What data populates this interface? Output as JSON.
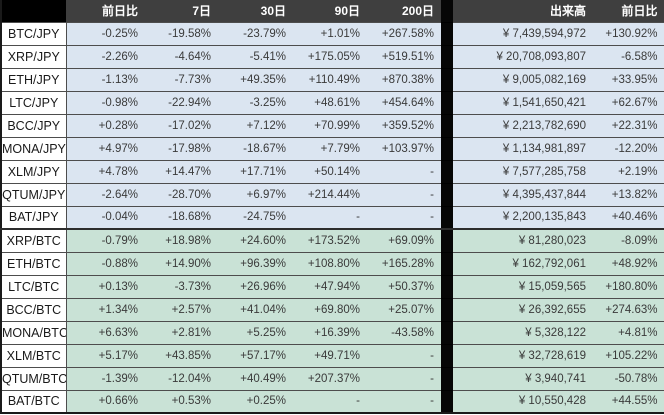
{
  "table": {
    "headers": {
      "pair": "",
      "change_1d": "前日比",
      "d7": "7日",
      "d30": "30日",
      "d90": "90日",
      "d200": "200日",
      "volume": "出来高",
      "vol_change_1d": "前日比"
    },
    "rows": [
      {
        "group": "jpy",
        "pair": "BTC/JPY",
        "change_1d": "-0.25%",
        "d7": "-19.58%",
        "d30": "-23.79%",
        "d90": "+1.01%",
        "d200": "+267.58%",
        "volume": "¥ 7,439,594,972",
        "vol_change_1d": "+130.92%"
      },
      {
        "group": "jpy",
        "pair": "XRP/JPY",
        "change_1d": "-2.26%",
        "d7": "-4.64%",
        "d30": "-5.41%",
        "d90": "+175.05%",
        "d200": "+519.51%",
        "volume": "¥ 20,708,093,807",
        "vol_change_1d": "-6.58%"
      },
      {
        "group": "jpy",
        "pair": "ETH/JPY",
        "change_1d": "-1.13%",
        "d7": "-7.73%",
        "d30": "+49.35%",
        "d90": "+110.49%",
        "d200": "+870.38%",
        "volume": "¥ 9,005,082,169",
        "vol_change_1d": "+33.95%"
      },
      {
        "group": "jpy",
        "pair": "LTC/JPY",
        "change_1d": "-0.98%",
        "d7": "-22.94%",
        "d30": "-3.25%",
        "d90": "+48.61%",
        "d200": "+454.64%",
        "volume": "¥ 1,541,650,421",
        "vol_change_1d": "+62.67%"
      },
      {
        "group": "jpy",
        "pair": "BCC/JPY",
        "change_1d": "+0.28%",
        "d7": "-17.02%",
        "d30": "+7.12%",
        "d90": "+70.99%",
        "d200": "+359.52%",
        "volume": "¥ 2,213,782,690",
        "vol_change_1d": "+22.31%"
      },
      {
        "group": "jpy",
        "pair": "MONA/JPY",
        "change_1d": "+4.97%",
        "d7": "-17.98%",
        "d30": "-18.67%",
        "d90": "+7.79%",
        "d200": "+103.97%",
        "volume": "¥ 1,134,981,897",
        "vol_change_1d": "-12.20%"
      },
      {
        "group": "jpy",
        "pair": "XLM/JPY",
        "change_1d": "+4.78%",
        "d7": "+14.47%",
        "d30": "+17.71%",
        "d90": "+50.14%",
        "d200": "-",
        "volume": "¥ 7,577,285,758",
        "vol_change_1d": "+2.19%"
      },
      {
        "group": "jpy",
        "pair": "QTUM/JPY",
        "change_1d": "-2.64%",
        "d7": "-28.70%",
        "d30": "+6.97%",
        "d90": "+214.44%",
        "d200": "-",
        "volume": "¥ 4,395,437,844",
        "vol_change_1d": "+13.82%"
      },
      {
        "group": "jpy",
        "pair": "BAT/JPY",
        "change_1d": "-0.04%",
        "d7": "-18.68%",
        "d30": "-24.75%",
        "d90": "-",
        "d200": "-",
        "volume": "¥ 2,200,135,843",
        "vol_change_1d": "+40.46%"
      },
      {
        "group": "btc",
        "pair": "XRP/BTC",
        "change_1d": "-0.79%",
        "d7": "+18.98%",
        "d30": "+24.60%",
        "d90": "+173.52%",
        "d200": "+69.09%",
        "volume": "¥ 81,280,023",
        "vol_change_1d": "-8.09%"
      },
      {
        "group": "btc",
        "pair": "ETH/BTC",
        "change_1d": "-0.88%",
        "d7": "+14.90%",
        "d30": "+96.39%",
        "d90": "+108.80%",
        "d200": "+165.28%",
        "volume": "¥ 162,792,061",
        "vol_change_1d": "+48.92%"
      },
      {
        "group": "btc",
        "pair": "LTC/BTC",
        "change_1d": "+0.13%",
        "d7": "-3.73%",
        "d30": "+26.96%",
        "d90": "+47.94%",
        "d200": "+50.37%",
        "volume": "¥ 15,059,565",
        "vol_change_1d": "+180.80%"
      },
      {
        "group": "btc",
        "pair": "BCC/BTC",
        "change_1d": "+1.34%",
        "d7": "+2.57%",
        "d30": "+41.04%",
        "d90": "+69.80%",
        "d200": "+25.07%",
        "volume": "¥ 26,392,655",
        "vol_change_1d": "+274.63%"
      },
      {
        "group": "btc",
        "pair": "MONA/BTC",
        "change_1d": "+6.63%",
        "d7": "+2.81%",
        "d30": "+5.25%",
        "d90": "+16.39%",
        "d200": "-43.58%",
        "volume": "¥ 5,328,122",
        "vol_change_1d": "+4.81%"
      },
      {
        "group": "btc",
        "pair": "XLM/BTC",
        "change_1d": "+5.17%",
        "d7": "+43.85%",
        "d30": "+57.17%",
        "d90": "+49.71%",
        "d200": "-",
        "volume": "¥ 32,728,619",
        "vol_change_1d": "+105.22%"
      },
      {
        "group": "btc",
        "pair": "QTUM/BTC",
        "change_1d": "-1.39%",
        "d7": "-12.04%",
        "d30": "+40.49%",
        "d90": "+207.37%",
        "d200": "-",
        "volume": "¥ 3,940,741",
        "vol_change_1d": "-50.78%"
      },
      {
        "group": "btc",
        "pair": "BAT/BTC",
        "change_1d": "+0.66%",
        "d7": "+0.53%",
        "d30": "+0.25%",
        "d90": "-",
        "d200": "-",
        "volume": "¥ 10,550,428",
        "vol_change_1d": "+44.55%"
      }
    ]
  },
  "colors": {
    "header_bg": "#3f3f3f",
    "header_corner_bg": "#000000",
    "divider_bg": "#060606",
    "jpy_row_bg": "#dbe5f1",
    "btc_row_bg": "#c9e2d6",
    "pair_bg": "#ffffff",
    "row_border": "#4d4d4d",
    "value_text": "#3a3a3a",
    "pair_text": "#1a1a1a",
    "header_text": "#ffffff"
  }
}
